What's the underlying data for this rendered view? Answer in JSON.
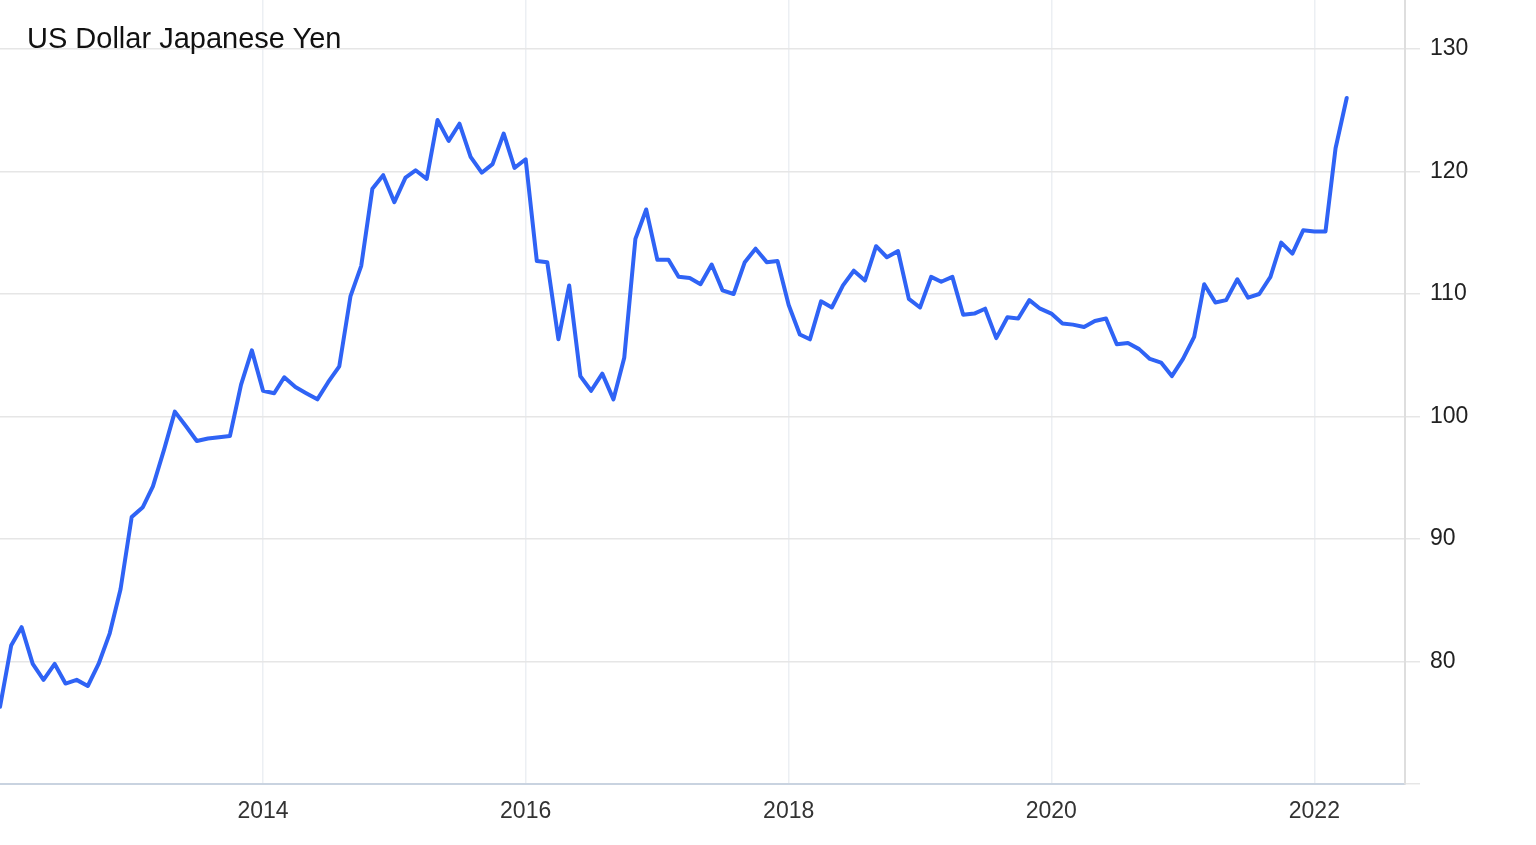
{
  "chart_data": {
    "type": "line",
    "title": "US Dollar Japanese Yen",
    "x": [
      "2012-01",
      "2012-02",
      "2012-03",
      "2012-04",
      "2012-05",
      "2012-06",
      "2012-07",
      "2012-08",
      "2012-09",
      "2012-10",
      "2012-11",
      "2012-12",
      "2013-01",
      "2013-02",
      "2013-03",
      "2013-04",
      "2013-05",
      "2013-06",
      "2013-07",
      "2013-08",
      "2013-09",
      "2013-10",
      "2013-11",
      "2013-12",
      "2014-01",
      "2014-02",
      "2014-03",
      "2014-04",
      "2014-05",
      "2014-06",
      "2014-07",
      "2014-08",
      "2014-09",
      "2014-10",
      "2014-11",
      "2014-12",
      "2015-01",
      "2015-02",
      "2015-03",
      "2015-04",
      "2015-05",
      "2015-06",
      "2015-07",
      "2015-08",
      "2015-09",
      "2015-10",
      "2015-11",
      "2015-12",
      "2016-01",
      "2016-02",
      "2016-03",
      "2016-04",
      "2016-05",
      "2016-06",
      "2016-07",
      "2016-08",
      "2016-09",
      "2016-10",
      "2016-11",
      "2016-12",
      "2017-01",
      "2017-02",
      "2017-03",
      "2017-04",
      "2017-05",
      "2017-06",
      "2017-07",
      "2017-08",
      "2017-09",
      "2017-10",
      "2017-11",
      "2017-12",
      "2018-01",
      "2018-02",
      "2018-03",
      "2018-04",
      "2018-05",
      "2018-06",
      "2018-07",
      "2018-08",
      "2018-09",
      "2018-10",
      "2018-11",
      "2018-12",
      "2019-01",
      "2019-02",
      "2019-03",
      "2019-04",
      "2019-05",
      "2019-06",
      "2019-07",
      "2019-08",
      "2019-09",
      "2019-10",
      "2019-11",
      "2019-12",
      "2020-01",
      "2020-02",
      "2020-03",
      "2020-04",
      "2020-05",
      "2020-06",
      "2020-07",
      "2020-08",
      "2020-09",
      "2020-10",
      "2020-11",
      "2020-12",
      "2021-01",
      "2021-02",
      "2021-03",
      "2021-04",
      "2021-05",
      "2021-06",
      "2021-07",
      "2021-08",
      "2021-09",
      "2021-10",
      "2021-11",
      "2021-12",
      "2022-01",
      "2022-02",
      "2022-03",
      "2022-04"
    ],
    "values": [
      76.3,
      81.3,
      82.8,
      79.8,
      78.5,
      79.8,
      78.2,
      78.5,
      78.0,
      79.8,
      82.3,
      85.9,
      91.8,
      92.6,
      94.3,
      97.3,
      100.4,
      99.2,
      98.0,
      98.2,
      98.3,
      98.4,
      102.6,
      105.4,
      102.1,
      101.9,
      103.2,
      102.4,
      101.9,
      101.4,
      102.8,
      104.1,
      109.8,
      112.3,
      118.6,
      119.7,
      117.5,
      119.5,
      120.1,
      119.4,
      124.2,
      122.5,
      123.9,
      121.2,
      119.9,
      120.6,
      123.1,
      120.3,
      121.0,
      112.7,
      112.6,
      106.3,
      110.7,
      103.3,
      102.1,
      103.5,
      101.4,
      104.8,
      114.5,
      116.9,
      112.8,
      112.8,
      111.4,
      111.3,
      110.8,
      112.4,
      110.3,
      110.0,
      112.6,
      113.7,
      112.6,
      112.7,
      109.1,
      106.7,
      106.3,
      109.4,
      108.9,
      110.7,
      111.9,
      111.1,
      113.9,
      113.0,
      113.5,
      109.6,
      108.9,
      111.4,
      111.0,
      111.4,
      108.3,
      108.4,
      108.8,
      106.4,
      108.1,
      108.0,
      109.5,
      108.8,
      108.4,
      107.6,
      107.5,
      107.3,
      107.8,
      108.0,
      105.9,
      106.0,
      105.5,
      104.7,
      104.4,
      103.3,
      104.7,
      106.5,
      110.8,
      109.3,
      109.5,
      111.2,
      109.7,
      110.0,
      111.4,
      114.2,
      113.3,
      115.2,
      115.1,
      115.1,
      121.9,
      126.0
    ],
    "color": "#2f63f5",
    "xlim": [
      "2012-01",
      "2022-09-10"
    ],
    "xticks": [
      "2014",
      "2016",
      "2018",
      "2020",
      "2022"
    ],
    "ylim": [
      70,
      134
    ],
    "yticks": [
      {
        "value": 70,
        "label": null
      },
      80,
      90,
      100,
      110,
      120,
      130
    ],
    "grid": true,
    "legend": false,
    "marker": "none",
    "line_style": "solid"
  }
}
